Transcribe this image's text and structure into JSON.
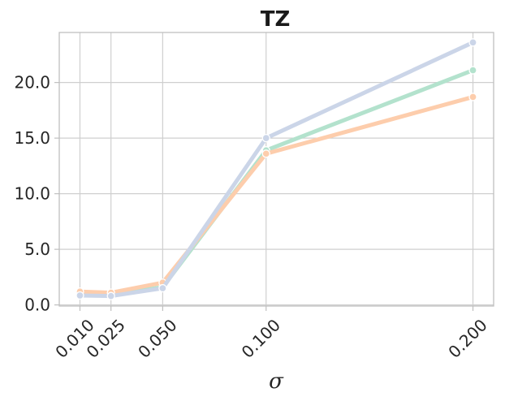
{
  "chart_data": {
    "type": "line",
    "title": "TZ",
    "xlabel": "σ",
    "ylabel": "",
    "x": [
      0.01,
      0.025,
      0.05,
      0.1,
      0.2
    ],
    "x_tick_labels": [
      "0.010",
      "0.025",
      "0.050",
      "0.100",
      "0.200"
    ],
    "y_ticks": [
      0,
      5,
      10,
      15,
      20
    ],
    "y_tick_labels": [
      "0.0",
      "5.0",
      "10.0",
      "15.0",
      "20.0"
    ],
    "xlim": [
      0.0,
      0.21
    ],
    "ylim": [
      -0.1,
      24.5
    ],
    "grid": true,
    "legend": "none",
    "series": [
      {
        "color": "#b3e2cd",
        "values": [
          0.9,
          0.9,
          1.6,
          13.9,
          21.1
        ]
      },
      {
        "color": "#fdcdac",
        "values": [
          1.2,
          1.1,
          2.0,
          13.6,
          18.7
        ]
      },
      {
        "color": "#cbd5e8",
        "values": [
          0.85,
          0.8,
          1.5,
          15.0,
          23.6
        ]
      }
    ]
  }
}
